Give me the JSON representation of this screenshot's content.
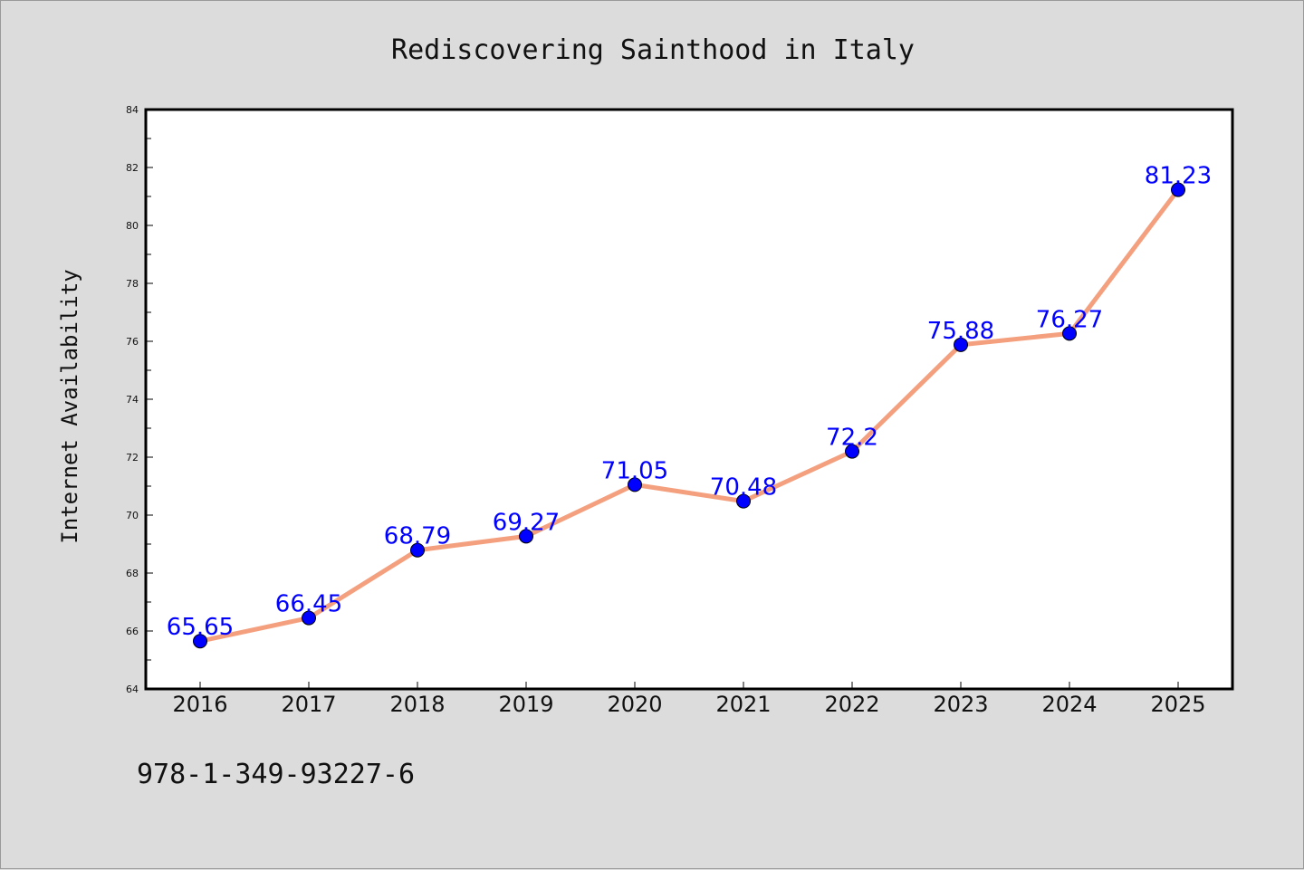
{
  "chart_data": {
    "type": "line",
    "title": "Rediscovering Sainthood in Italy",
    "xlabel": "",
    "ylabel": "Internet Availability",
    "categories": [
      "2016",
      "2017",
      "2018",
      "2019",
      "2020",
      "2021",
      "2022",
      "2023",
      "2024",
      "2025"
    ],
    "values": [
      65.65,
      66.45,
      68.79,
      69.27,
      71.05,
      70.48,
      72.2,
      75.88,
      76.27,
      81.23
    ],
    "data_labels": [
      "65.65",
      "66.45",
      "68.79",
      "69.27",
      "71.05",
      "70.48",
      "72.2",
      "75.88",
      "76.27",
      "81.23"
    ],
    "ylim": [
      64,
      84
    ],
    "yticks": [
      64,
      66,
      68,
      70,
      72,
      74,
      76,
      78,
      80,
      82,
      84
    ],
    "grid": false,
    "legend": "none",
    "colors": {
      "line": "#f4a07e",
      "marker": "#0000ff",
      "data_label": "#0000ff",
      "background": "#dcdcdc",
      "plot_area": "#ffffff"
    }
  },
  "annotation": "978-1-349-93227-6"
}
